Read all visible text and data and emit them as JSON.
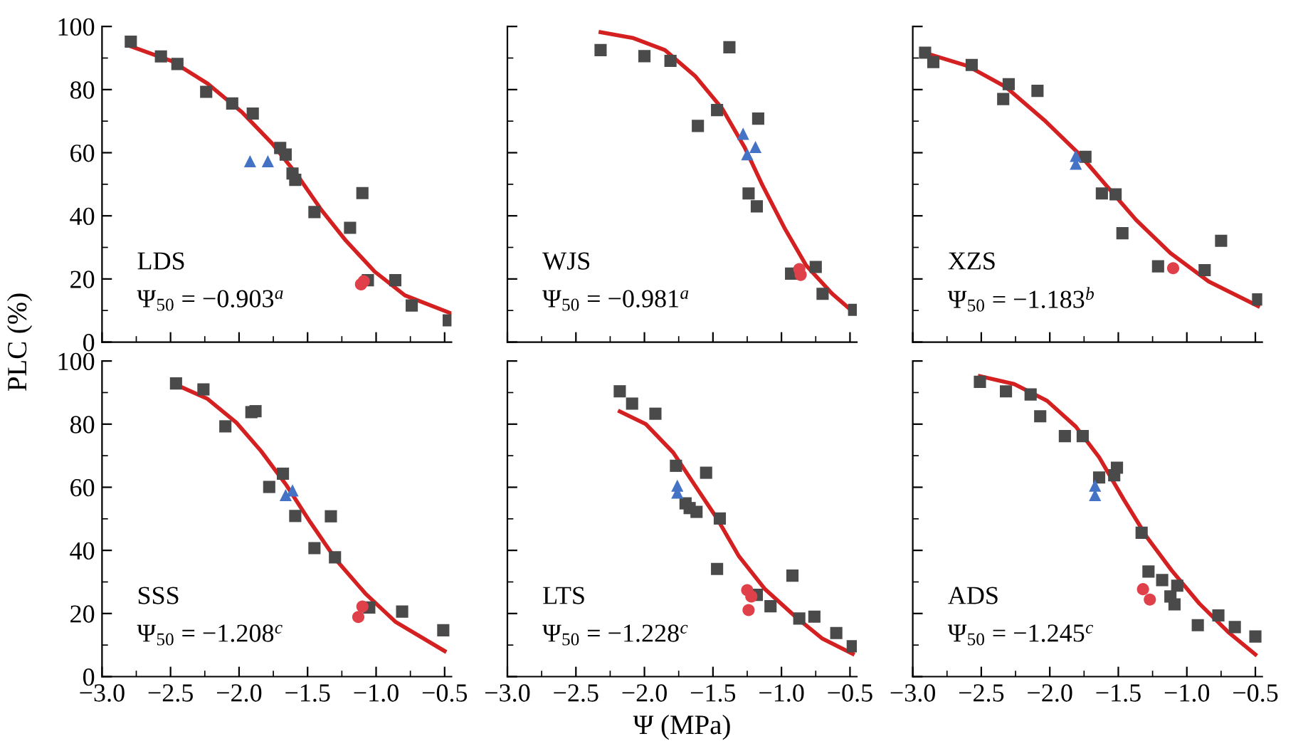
{
  "chart_data": [
    {
      "type": "scatter",
      "ylabel": "PLC (%)",
      "annotations": [
        "LDS",
        "Ψ$_{50}$ = −0.903$^{a}$"
      ],
      "xlim": [
        -3,
        -0.45
      ],
      "ylim": [
        0,
        100
      ],
      "xticks": [
        {
          "value": -3,
          "label": null
        },
        {
          "value": -2.5,
          "label": null
        },
        {
          "value": -2,
          "label": null
        },
        {
          "value": -1.5,
          "label": null
        },
        {
          "value": -1,
          "label": null
        },
        {
          "value": -0.5,
          "label": null
        }
      ],
      "yticks": [
        0,
        20,
        40,
        60,
        80,
        100
      ],
      "tick_labels": "y",
      "series": [
        {
          "marker": "square",
          "color": "#4a4a4a",
          "x": [
            -2.79,
            -2.57,
            -2.45,
            -2.24,
            -2.05,
            -1.9,
            -1.7,
            -1.66,
            -1.61,
            -1.59,
            -1.45,
            -1.19,
            -1.1,
            -1.06,
            -0.86,
            -0.74,
            -0.47
          ],
          "values": [
            95.2,
            90.5,
            88.1,
            79.3,
            75.6,
            72.4,
            61.5,
            59.4,
            53.4,
            51.4,
            41.2,
            36.2,
            47.2,
            19.6,
            19.6,
            11.6,
            6.9
          ]
        },
        {
          "marker": "triangle",
          "color": "#4472c4",
          "x": [
            -1.92,
            -1.79
          ],
          "values": [
            57.3,
            57.3
          ]
        },
        {
          "marker": "circle",
          "color": "#e0404a",
          "x": [
            -1.11,
            -1.09
          ],
          "values": [
            18.3,
            19.3
          ]
        },
        {
          "type": "line",
          "color": "#d42020",
          "x": [
            -2.79,
            -2.49,
            -2.23,
            -1.98,
            -1.76,
            -1.58,
            -1.4,
            -1.22,
            -1.01,
            -0.79,
            -0.46
          ],
          "values": [
            93.7,
            89,
            81.9,
            72.9,
            63,
            53.2,
            41.9,
            32.1,
            22.3,
            14.8,
            9.2
          ]
        }
      ]
    },
    {
      "type": "scatter",
      "annotations": [
        "WJS",
        "Ψ$_{50}$ = −0.981$^{a}$"
      ],
      "xlim": [
        -3,
        -0.45
      ],
      "ylim": [
        0,
        100
      ],
      "xticks": [
        {
          "value": -3,
          "label": null
        },
        {
          "value": -2.5,
          "label": null
        },
        {
          "value": -2,
          "label": null
        },
        {
          "value": -1.5,
          "label": null
        },
        {
          "value": -1,
          "label": null
        },
        {
          "value": -0.5,
          "label": null
        }
      ],
      "yticks": [
        {
          "value": 0,
          "label": null
        },
        {
          "value": 20,
          "label": null
        },
        {
          "value": 40,
          "label": null
        },
        {
          "value": 60,
          "label": null
        },
        {
          "value": 80,
          "label": null
        },
        {
          "value": 100,
          "label": null
        }
      ],
      "tick_labels": false,
      "series": [
        {
          "marker": "square",
          "color": "#4a4a4a",
          "x": [
            -2.32,
            -2.0,
            -1.81,
            -1.38,
            -1.47,
            -1.61,
            -1.17,
            -1.24,
            -1.18,
            -0.93,
            -0.75,
            -0.7,
            -0.47
          ],
          "values": [
            92.5,
            90.6,
            89.1,
            93.4,
            73.5,
            68.5,
            70.8,
            47.1,
            43.0,
            21.7,
            23.8,
            15.3,
            10.2
          ]
        },
        {
          "marker": "triangle",
          "color": "#4472c4",
          "x": [
            -1.28,
            -1.19,
            -1.25
          ],
          "values": [
            66.0,
            61.8,
            59.5
          ]
        },
        {
          "marker": "circle",
          "color": "#e0404a",
          "x": [
            -0.87,
            -0.86
          ],
          "values": [
            23.1,
            21.3
          ]
        },
        {
          "type": "line",
          "color": "#d42020",
          "x": [
            -2.32,
            -2.08,
            -1.85,
            -1.63,
            -1.43,
            -1.27,
            -1.14,
            -0.98,
            -0.82,
            -0.63,
            -0.47
          ],
          "values": [
            98.2,
            96.3,
            92.5,
            84.3,
            73.8,
            61.8,
            49.8,
            36.3,
            24.3,
            15.3,
            9.3
          ]
        }
      ]
    },
    {
      "type": "scatter",
      "annotations": [
        "XZS",
        "Ψ$_{50}$ = −1.183$^{b}$"
      ],
      "xlim": [
        -3,
        -0.45
      ],
      "ylim": [
        0,
        100
      ],
      "xticks": [
        {
          "value": -3,
          "label": null
        },
        {
          "value": -2.5,
          "label": null
        },
        {
          "value": -2,
          "label": null
        },
        {
          "value": -1.5,
          "label": null
        },
        {
          "value": -1,
          "label": null
        },
        {
          "value": -0.5,
          "label": null
        }
      ],
      "yticks": [
        {
          "value": 0,
          "label": null
        },
        {
          "value": 20,
          "label": null
        },
        {
          "value": 40,
          "label": null
        },
        {
          "value": 60,
          "label": null
        },
        {
          "value": 80,
          "label": null
        },
        {
          "value": 100,
          "label": null
        }
      ],
      "tick_labels": false,
      "series": [
        {
          "marker": "square",
          "color": "#4a4a4a",
          "x": [
            -2.91,
            -2.85,
            -2.57,
            -2.34,
            -2.3,
            -2.09,
            -1.74,
            -1.62,
            -1.52,
            -1.47,
            -1.21,
            -0.87,
            -0.75,
            -0.48
          ],
          "values": [
            91.7,
            88.7,
            87.8,
            77.0,
            81.7,
            79.6,
            58.7,
            47.1,
            46.8,
            34.5,
            24.0,
            22.8,
            32.1,
            13.5
          ]
        },
        {
          "marker": "triangle",
          "color": "#4472c4",
          "x": [
            -1.81,
            -1.81
          ],
          "values": [
            59.0,
            56.5
          ]
        },
        {
          "marker": "circle",
          "color": "#e0404a",
          "x": [
            -1.1
          ],
          "values": [
            23.4
          ]
        },
        {
          "type": "line",
          "color": "#d42020",
          "x": [
            -2.91,
            -2.6,
            -2.32,
            -2.04,
            -1.79,
            -1.58,
            -1.37,
            -1.12,
            -0.84,
            -0.48
          ],
          "values": [
            91.6,
            87.5,
            80.8,
            70.3,
            59.8,
            49.2,
            38.7,
            28.2,
            19.2,
            11.4
          ]
        }
      ]
    },
    {
      "type": "scatter",
      "annotations": [
        "SSS",
        "Ψ$_{50}$ = −1.208$^{c}$"
      ],
      "xlim": [
        -3,
        -0.45
      ],
      "ylim": [
        0,
        100
      ],
      "xticks": [
        {
          "value": -3,
          "label": "−3.0"
        },
        {
          "value": -2.5,
          "label": "−2.5"
        },
        {
          "value": -2,
          "label": "−2.0"
        },
        {
          "value": -1.5,
          "label": "−1.5"
        },
        {
          "value": -1,
          "label": "−1.0"
        },
        {
          "value": -0.5,
          "label": "−0.5"
        }
      ],
      "yticks": [
        0,
        20,
        40,
        60,
        80,
        100
      ],
      "series": [
        {
          "marker": "square",
          "color": "#4a4a4a",
          "x": [
            -2.46,
            -2.26,
            -2.1,
            -1.91,
            -1.88,
            -1.78,
            -1.68,
            -1.59,
            -1.45,
            -1.33,
            -1.3,
            -1.05,
            -0.81,
            -0.51
          ],
          "values": [
            92.9,
            91.0,
            79.3,
            83.8,
            84.1,
            60.1,
            64.3,
            50.9,
            40.7,
            50.8,
            37.8,
            21.9,
            20.6,
            14.7
          ]
        },
        {
          "marker": "triangle",
          "color": "#4472c4",
          "x": [
            -1.66,
            -1.61
          ],
          "values": [
            57.5,
            59.0
          ]
        },
        {
          "marker": "circle",
          "color": "#e0404a",
          "x": [
            -1.13,
            -1.1
          ],
          "values": [
            18.9,
            22.2
          ]
        },
        {
          "type": "line",
          "color": "#d42020",
          "x": [
            -2.46,
            -2.23,
            -2.02,
            -1.84,
            -1.66,
            -1.48,
            -1.29,
            -1.08,
            -0.86,
            -0.5
          ],
          "values": [
            92.5,
            88.0,
            80.5,
            71.5,
            61.0,
            48.9,
            36.9,
            26.4,
            17.4,
            8.1
          ]
        }
      ]
    },
    {
      "type": "scatter",
      "xlabel": "Ψ (MPa)",
      "annotations": [
        "LTS",
        "Ψ$_{50}$ = −1.228$^{c}$"
      ],
      "xlim": [
        -3,
        -0.45
      ],
      "ylim": [
        0,
        100
      ],
      "xticks": [
        {
          "value": -3,
          "label": "−3.0"
        },
        {
          "value": -2.5,
          "label": "−2.5"
        },
        {
          "value": -2,
          "label": "−2.0"
        },
        {
          "value": -1.5,
          "label": "−1.5"
        },
        {
          "value": -1,
          "label": "−1.0"
        },
        {
          "value": -0.5,
          "label": "−0.5"
        }
      ],
      "yticks": [
        {
          "value": 0,
          "label": null
        },
        {
          "value": 20,
          "label": null
        },
        {
          "value": 40,
          "label": null
        },
        {
          "value": 60,
          "label": null
        },
        {
          "value": 80,
          "label": null
        },
        {
          "value": 100,
          "label": null
        }
      ],
      "tick_labels": "x",
      "series": [
        {
          "marker": "square",
          "color": "#4a4a4a",
          "x": [
            -2.18,
            -2.09,
            -1.92,
            -1.77,
            -1.55,
            -1.7,
            -1.67,
            -1.62,
            -1.45,
            -1.47,
            -1.18,
            -1.08,
            -0.92,
            -0.87,
            -0.76,
            -0.6,
            -0.48
          ],
          "values": [
            90.4,
            86.5,
            83.3,
            66.8,
            64.6,
            54.9,
            53.4,
            52.2,
            50.1,
            34.1,
            25.9,
            22.3,
            32.0,
            18.4,
            19.0,
            13.8,
            9.6
          ]
        },
        {
          "marker": "triangle",
          "color": "#4472c4",
          "x": [
            -1.76,
            -1.76
          ],
          "values": [
            60.5,
            58.3
          ]
        },
        {
          "marker": "circle",
          "color": "#e0404a",
          "x": [
            -1.25,
            -1.22,
            -1.24
          ],
          "values": [
            27.4,
            25.4,
            21.1
          ]
        },
        {
          "type": "line",
          "color": "#d42020",
          "x": [
            -2.18,
            -1.99,
            -1.79,
            -1.63,
            -1.47,
            -1.31,
            -1.12,
            -0.89,
            -0.7,
            -0.48
          ],
          "values": [
            84.0,
            80.0,
            71.0,
            60.5,
            50.1,
            38.1,
            27.7,
            18.7,
            12.0,
            7.2
          ]
        }
      ]
    },
    {
      "type": "scatter",
      "annotations": [
        "ADS",
        "Ψ$_{50}$ = −1.245$^{c}$"
      ],
      "xlim": [
        -3,
        -0.45
      ],
      "ylim": [
        0,
        100
      ],
      "xticks": [
        {
          "value": -3,
          "label": "−3.0"
        },
        {
          "value": -2.5,
          "label": "−2.5"
        },
        {
          "value": -2,
          "label": "−2.0"
        },
        {
          "value": -1.5,
          "label": "−1.5"
        },
        {
          "value": -1,
          "label": "−1.0"
        },
        {
          "value": -0.5,
          "label": "−0.5"
        }
      ],
      "yticks": [
        {
          "value": 0,
          "label": null
        },
        {
          "value": 20,
          "label": null
        },
        {
          "value": 40,
          "label": null
        },
        {
          "value": 60,
          "label": null
        },
        {
          "value": 80,
          "label": null
        },
        {
          "value": 100,
          "label": null
        }
      ],
      "tick_labels": "x",
      "series": [
        {
          "marker": "square",
          "color": "#4a4a4a",
          "x": [
            -2.51,
            -2.32,
            -2.14,
            -2.07,
            -1.89,
            -1.76,
            -1.64,
            -1.53,
            -1.51,
            -1.33,
            -1.28,
            -1.18,
            -1.07,
            -1.12,
            -1.09,
            -0.92,
            -0.77,
            -0.65,
            -0.5
          ],
          "values": [
            93.4,
            90.4,
            89.4,
            82.5,
            76.2,
            76.2,
            63.1,
            63.8,
            66.2,
            45.6,
            33.3,
            30.6,
            28.8,
            25.4,
            22.9,
            16.3,
            19.4,
            15.7,
            12.7
          ]
        },
        {
          "marker": "triangle",
          "color": "#4472c4",
          "x": [
            -1.67,
            -1.67
          ],
          "values": [
            60.5,
            57.5
          ]
        },
        {
          "marker": "circle",
          "color": "#e0404a",
          "x": [
            -1.32,
            -1.27
          ],
          "values": [
            27.7,
            24.4
          ]
        },
        {
          "type": "line",
          "color": "#d42020",
          "x": [
            -2.51,
            -2.26,
            -2.02,
            -1.81,
            -1.64,
            -1.46,
            -1.29,
            -1.11,
            -0.91,
            -0.7,
            -0.5
          ],
          "values": [
            95.2,
            92.7,
            87.4,
            79.2,
            69.5,
            56.1,
            44.1,
            33.6,
            23.2,
            14.2,
            7.0
          ]
        }
      ]
    }
  ]
}
